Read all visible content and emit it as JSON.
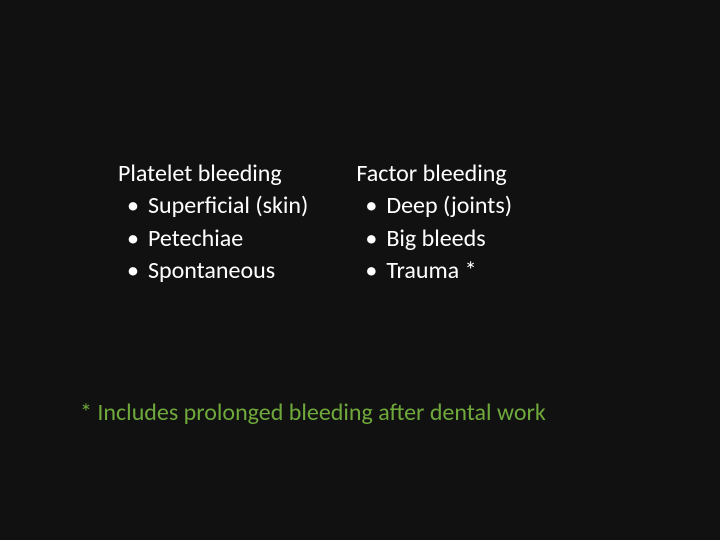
{
  "slide": {
    "background_color": "#111111",
    "text_color": "#ffffff",
    "accent_color": "#6fa93b",
    "font_family": "Calibri",
    "body_fontsize_pt": 24,
    "columns": [
      {
        "heading": "Platelet bleeding",
        "items": [
          "Superficial (skin)",
          "Petechiae",
          "Spontaneous"
        ]
      },
      {
        "heading": "Factor bleeding",
        "items": [
          "Deep (joints)",
          "Big bleeds",
          "Trauma *"
        ]
      }
    ],
    "bullet_glyph": "•",
    "footnote": "* Includes prolonged bleeding after dental work"
  }
}
